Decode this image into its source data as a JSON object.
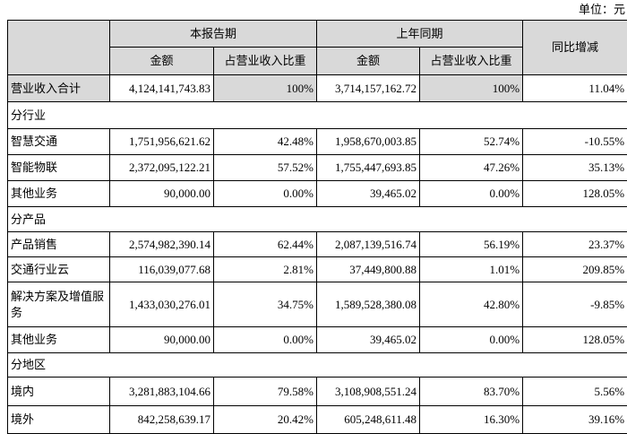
{
  "unit": "单位：元",
  "table": {
    "header": {
      "current": "本报告期",
      "previous": "上年同期",
      "change": "同比增减"
    },
    "subheader": [
      "金额",
      "占营业收入比重",
      "金额",
      "占营业收入比重"
    ],
    "rows": [
      [
        "营业收入合计",
        "4,124,141,743.83",
        "100%",
        "3,714,157,162.72",
        "100%",
        "11.04%"
      ],
      [
        "分行业"
      ],
      [
        "智慧交通",
        "1,751,956,621.62",
        "42.48%",
        "1,958,670,003.85",
        "52.74%",
        "-10.55%"
      ],
      [
        "智能物联",
        "2,372,095,122.21",
        "57.52%",
        "1,755,447,693.85",
        "47.26%",
        "35.13%"
      ],
      [
        "其他业务",
        "90,000.00",
        "0.00%",
        "39,465.02",
        "0.00%",
        "128.05%"
      ],
      [
        "分产品"
      ],
      [
        "产品销售",
        "2,574,982,390.14",
        "62.44%",
        "2,087,139,516.74",
        "56.19%",
        "23.37%"
      ],
      [
        "交通行业云",
        "116,039,077.68",
        "2.81%",
        "37,449,800.88",
        "1.01%",
        "209.85%"
      ],
      [
        "解决方案及增值服务",
        "1,433,030,276.01",
        "34.75%",
        "1,589,528,380.08",
        "42.80%",
        "-9.85%"
      ],
      [
        "其他业务",
        "90,000.00",
        "0.00%",
        "39,465.02",
        "0.00%",
        "128.05%"
      ],
      [
        "分地区"
      ],
      [
        "境内",
        "3,281,883,104.66",
        "79.58%",
        "3,108,908,551.24",
        "83.70%",
        "5.56%"
      ],
      [
        "境外",
        "842,258,639.17",
        "20.42%",
        "605,248,611.48",
        "16.30%",
        "39.16%"
      ]
    ]
  }
}
